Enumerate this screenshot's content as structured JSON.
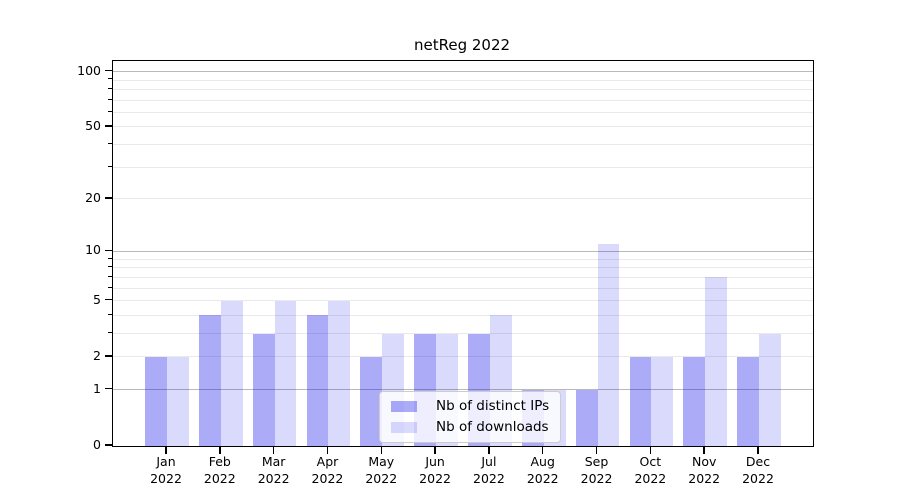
{
  "title": "netReg 2022",
  "colors": {
    "series_ips": "rgba(10,10,235,0.34)",
    "series_downloads": "rgba(10,10,235,0.15)",
    "grid_major": "#b9b9b9",
    "grid_minor": "#e9e9e9",
    "spine": "#000000",
    "legend_border": "#cccccc",
    "legend_background": "rgba(255,255,255,0.8)"
  },
  "legend": {
    "items": [
      {
        "label": "Nb of distinct IPs",
        "color_key": "series_ips"
      },
      {
        "label": "Nb of downloads",
        "color_key": "series_downloads"
      }
    ]
  },
  "chart_data": {
    "type": "bar",
    "title": "netReg 2022",
    "categories": [
      "Jan",
      "Feb",
      "Mar",
      "Apr",
      "May",
      "Jun",
      "Jul",
      "Aug",
      "Sep",
      "Oct",
      "Nov",
      "Dec"
    ],
    "x_tick_second_line": "2022",
    "series": [
      {
        "name": "Nb of distinct IPs",
        "values": [
          2,
          4,
          3,
          4,
          2,
          3,
          3,
          1,
          1,
          2,
          2,
          2
        ]
      },
      {
        "name": "Nb of downloads",
        "values": [
          2,
          5,
          5,
          5,
          3,
          3,
          4,
          1,
          11,
          2,
          7,
          3
        ]
      }
    ],
    "xlabel": "",
    "ylabel": "",
    "y_scale": "log1p",
    "ylim": [
      0,
      114
    ],
    "y_tick_values": [
      0,
      1,
      2,
      5,
      10,
      20,
      50,
      100
    ],
    "y_tick_labels": [
      "0",
      "1",
      "2",
      "5",
      "10",
      "20",
      "50",
      "100"
    ],
    "grid": {
      "on": true,
      "major_values": [
        1,
        10,
        100
      ],
      "minor_values": [
        2,
        3,
        4,
        5,
        6,
        7,
        8,
        9,
        20,
        30,
        40,
        50,
        60,
        70,
        80,
        90
      ]
    },
    "legend_position": "lower-center"
  }
}
